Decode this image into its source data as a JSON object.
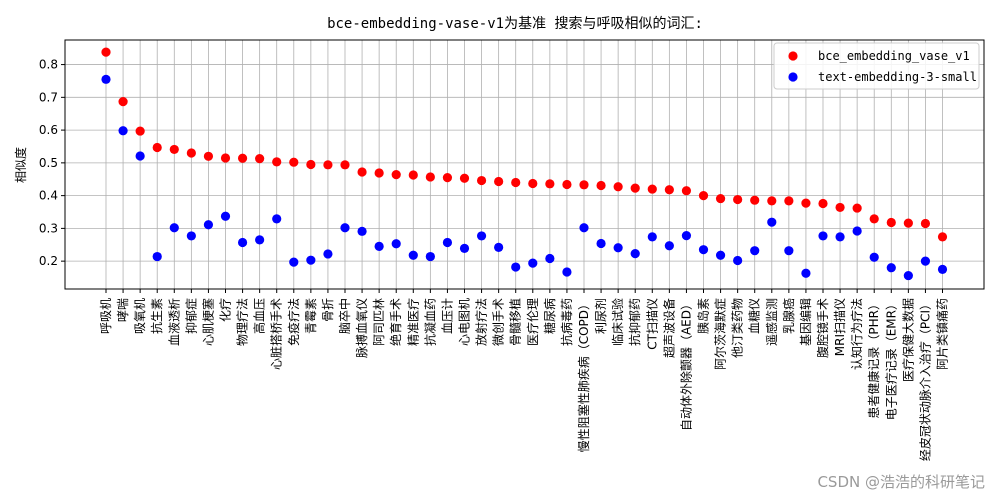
{
  "chart_data": {
    "type": "scatter",
    "title": "bce-embedding-vase-v1为基准 搜索与呼吸相似的词汇:",
    "xlabel": "",
    "ylabel": "相似度",
    "ylim": [
      0.115,
      0.875
    ],
    "yticks": [
      0.2,
      0.3,
      0.4,
      0.5,
      0.6,
      0.7,
      0.8
    ],
    "grid": true,
    "legend_position": "top-right",
    "categories": [
      "呼吸机",
      "哮喘",
      "吸氧机",
      "抗生素",
      "血液透析",
      "抑郁症",
      "心肌梗塞",
      "化疗",
      "物理疗法",
      "高血压",
      "心脏搭桥手术",
      "免疫疗法",
      "青霉素",
      "骨折",
      "脑卒中",
      "脉搏血氧仪",
      "阿司匹林",
      "绝育手术",
      "精准医疗",
      "抗凝血药",
      "血压计",
      "心电图机",
      "放射疗法",
      "微创手术",
      "骨髓移植",
      "医疗伦理",
      "糖尿病",
      "抗病毒药",
      "慢性阻塞性肺疾病（COPD）",
      "利尿剂",
      "临床试验",
      "抗抑郁药",
      "CT扫描仪",
      "超声波设备",
      "自动体外除颤器（AED）",
      "胰岛素",
      "阿尔茨海默症",
      "他汀类药物",
      "血糖仪",
      "遥感监测",
      "乳腺癌",
      "基因编辑",
      "腹腔镜手术",
      "MRI扫描仪",
      "认知行为疗法",
      "患者健康记录（PHR）",
      "电子医疗记录（EMR）",
      "医疗保健大数据",
      "经皮冠状动脉介入治疗（PCI）",
      "阿片类镇痛药"
    ],
    "series": [
      {
        "name": "bce_embedding_vase_v1",
        "color": "#ff0000",
        "values": [
          0.838,
          0.687,
          0.597,
          0.547,
          0.541,
          0.53,
          0.52,
          0.515,
          0.514,
          0.513,
          0.503,
          0.502,
          0.495,
          0.494,
          0.494,
          0.472,
          0.469,
          0.464,
          0.463,
          0.457,
          0.455,
          0.453,
          0.446,
          0.443,
          0.44,
          0.437,
          0.436,
          0.434,
          0.433,
          0.431,
          0.427,
          0.423,
          0.42,
          0.418,
          0.415,
          0.4,
          0.391,
          0.388,
          0.386,
          0.384,
          0.384,
          0.377,
          0.376,
          0.364,
          0.362,
          0.329,
          0.318,
          0.316,
          0.315,
          0.274
        ]
      },
      {
        "name": "text-embedding-3-small",
        "color": "#0000ff",
        "values": [
          0.755,
          0.598,
          0.521,
          0.214,
          0.302,
          0.277,
          0.311,
          0.337,
          0.257,
          0.265,
          0.329,
          0.197,
          0.203,
          0.222,
          0.302,
          0.291,
          0.245,
          0.253,
          0.218,
          0.214,
          0.257,
          0.239,
          0.277,
          0.242,
          0.182,
          0.194,
          0.208,
          0.167,
          0.302,
          0.254,
          0.241,
          0.223,
          0.274,
          0.247,
          0.278,
          0.235,
          0.218,
          0.202,
          0.232,
          0.319,
          0.232,
          0.163,
          0.277,
          0.274,
          0.292,
          0.212,
          0.18,
          0.156,
          0.2,
          0.175
        ]
      }
    ]
  },
  "watermark": "CSDN @浩浩的科研笔记"
}
